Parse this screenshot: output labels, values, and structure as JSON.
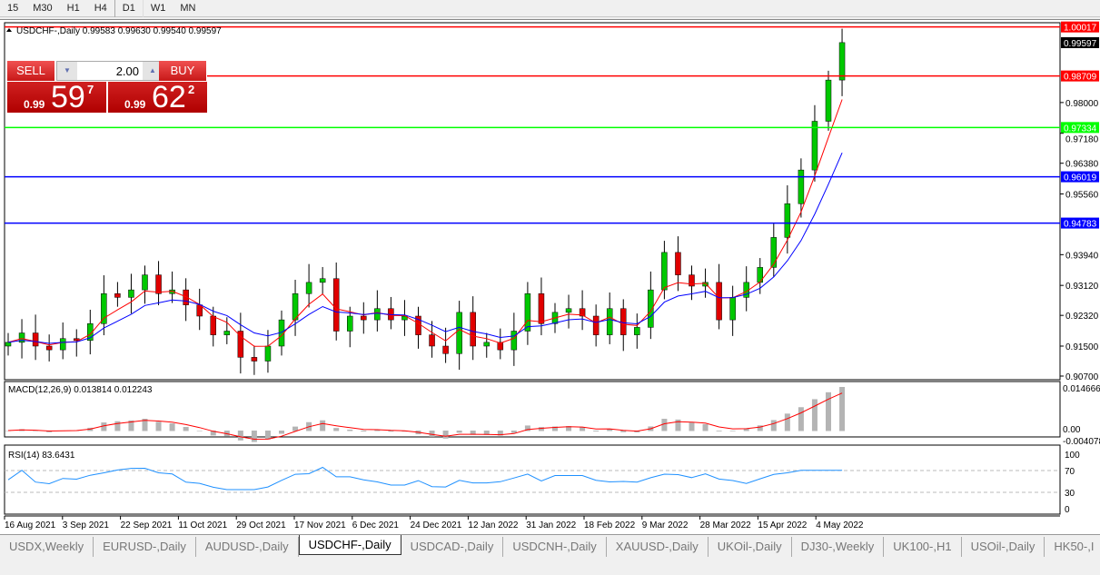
{
  "toolbar": {
    "timeframes": [
      "15",
      "M30",
      "H1",
      "H4",
      "D1",
      "W1",
      "MN"
    ],
    "active": "D1"
  },
  "chart": {
    "header": "USDCHF-,Daily  0.99583 0.99630 0.99540 0.99597",
    "price_labels": [
      "1.00017",
      "0.99597",
      "0.98709",
      "0.98000",
      "0.97334",
      "0.97180",
      "0.96380",
      "0.96019",
      "0.95560",
      "0.94783",
      "0.93940",
      "0.93120",
      "0.92320",
      "0.91500",
      "0.90700"
    ],
    "hlines": [
      {
        "price": 1.00017,
        "label": "1.00017",
        "color": "#ff0000"
      },
      {
        "price": 0.98709,
        "label": "0.98709",
        "color": "#ff0000"
      },
      {
        "price": 0.97334,
        "label": "0.97334",
        "color": "#00ff00"
      },
      {
        "price": 0.96019,
        "label": "0.96019",
        "color": "#0000ff"
      },
      {
        "price": 0.94783,
        "label": "0.94783",
        "color": "#0000ff"
      }
    ],
    "current_price": {
      "value": 0.99597,
      "label": "0.99597"
    },
    "axis_ticks": [
      0.98,
      0.9718,
      0.9638,
      0.9556,
      0.9394,
      0.9312,
      0.9232,
      0.915,
      0.907
    ],
    "axis_tick_labels": [
      "0.98000",
      "0.97180",
      "0.96380",
      "0.95560",
      "0.93940",
      "0.93120",
      "0.92320",
      "0.91500",
      "0.90700"
    ],
    "dates": [
      "16 Aug 2021",
      "3 Sep 2021",
      "22 Sep 2021",
      "11 Oct 2021",
      "29 Oct 2021",
      "17 Nov 2021",
      "6 Dec 2021",
      "24 Dec 2021",
      "12 Jan 2022",
      "31 Jan 2022",
      "18 Feb 2022",
      "9 Mar 2022",
      "28 Mar 2022",
      "15 Apr 2022",
      "4 May 2022"
    ],
    "macd": {
      "label": "MACD(12,26,9) 0.013814 0.012243",
      "scale": [
        "0.014666",
        "0.00",
        "-0.004078"
      ]
    },
    "rsi": {
      "label": "RSI(14) 83.6431",
      "scale": [
        "100",
        "70",
        "30",
        "0"
      ]
    },
    "colors": {
      "bull": "#00c800",
      "bear": "#e00000",
      "ma_fast": "#ff0000",
      "ma_slow": "#0000ff",
      "rsi": "#1e90ff",
      "hist": "#b4b4b4"
    }
  },
  "trade_panel": {
    "sell": "SELL",
    "buy": "BUY",
    "lot": "2.00",
    "bid_small": "0.99",
    "bid_large": "59",
    "bid_sup": "7",
    "ask_small": "0.99",
    "ask_large": "62",
    "ask_sup": "2"
  },
  "chart_data": {
    "type": "candlestick",
    "symbol": "USDCHF-",
    "timeframe": "Daily",
    "ylim": [
      0.907,
      1.00017
    ],
    "closes": [
      0.916,
      0.9185,
      0.915,
      0.914,
      0.917,
      0.9165,
      0.921,
      0.929,
      0.928,
      0.93,
      0.934,
      0.929,
      0.93,
      0.926,
      0.923,
      0.918,
      0.919,
      0.912,
      0.911,
      0.915,
      0.922,
      0.929,
      0.932,
      0.933,
      0.919,
      0.923,
      0.922,
      0.925,
      0.922,
      0.923,
      0.918,
      0.915,
      0.913,
      0.924,
      0.915,
      0.916,
      0.914,
      0.919,
      0.929,
      0.921,
      0.924,
      0.925,
      0.923,
      0.918,
      0.925,
      0.918,
      0.92,
      0.93,
      0.94,
      0.934,
      0.931,
      0.932,
      0.922,
      0.928,
      0.932,
      0.936,
      0.944,
      0.953,
      0.962,
      0.975,
      0.986,
      0.996
    ]
  },
  "tabs": [
    "USDX,Weekly",
    "EURUSD-,Daily",
    "AUDUSD-,Daily",
    "USDCHF-,Daily",
    "USDCAD-,Daily",
    "USDCNH-,Daily",
    "XAUUSD-,Daily",
    "UKOil-,Daily",
    "DJ30-,Weekly",
    "UK100-,H1",
    "USOil-,Daily",
    "HK50-,I"
  ],
  "active_tab": "USDCHF-,Daily"
}
